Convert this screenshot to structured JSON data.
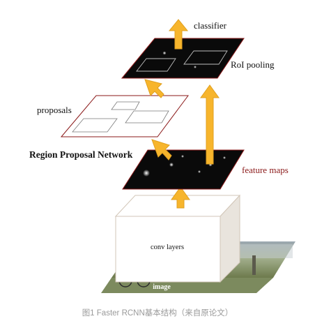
{
  "diagram": {
    "labels": {
      "classifier": "classifier",
      "roi_pooling": "RoI pooling",
      "proposals": "proposals",
      "rpn": "Region Proposal Network",
      "feature_maps": "feature maps",
      "conv_layers": "conv layers",
      "image": "image"
    },
    "caption": "图1 Faster RCNN基本结构（来自原论文）",
    "colors": {
      "arrow_fill": "#f7b52c",
      "arrow_stroke": "#e0a020",
      "map_fill": "#0a0a0a",
      "map_border": "#8b1a1a",
      "feature_label": "#8b1a1a",
      "caption": "#9a9a9a",
      "proposal_box": "#7a7a7a"
    }
  }
}
